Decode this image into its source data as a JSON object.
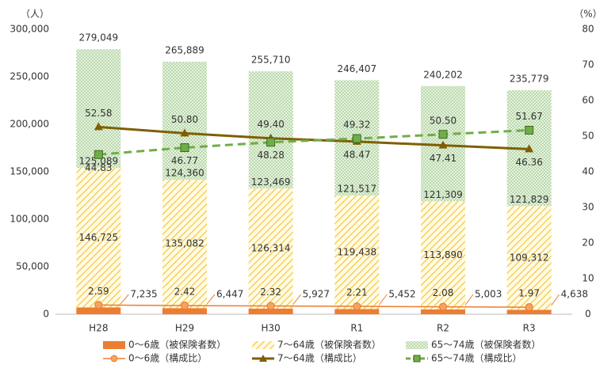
{
  "chart_data": {
    "type": "bar",
    "y_unit_label": "（人）",
    "y2_unit_label": "（%）",
    "categories": [
      "H28",
      "H29",
      "H30",
      "R1",
      "R2",
      "R3"
    ],
    "series": [
      {
        "name": "0～6歳（被保険者数）",
        "type": "bar",
        "color": "#ed7d31",
        "values": [
          7235,
          6447,
          5927,
          5452,
          5003,
          4638
        ],
        "value_labels": [
          "7,235",
          "6,447",
          "5,927",
          "5,452",
          "5,003",
          "4,638"
        ]
      },
      {
        "name": "7～64歳（被保険者数）",
        "type": "bar",
        "color": "#f5c842",
        "values": [
          146725,
          135082,
          126314,
          119438,
          113890,
          109312
        ],
        "value_labels": [
          "146,725",
          "135,082",
          "126,314",
          "119,438",
          "113,890",
          "109,312"
        ]
      },
      {
        "name": "65～74歳（被保険者数）",
        "type": "bar",
        "color": "#9dc88a",
        "values": [
          125089,
          124360,
          123469,
          121517,
          121309,
          121829
        ],
        "value_labels": [
          "125,089",
          "124,360",
          "123,469",
          "121,517",
          "121,309",
          "121,829"
        ]
      },
      {
        "name": "0～6歳（構成比）",
        "type": "line",
        "axis": "y2",
        "marker": "circle",
        "color": "#ed7d31",
        "values": [
          2.59,
          2.42,
          2.32,
          2.21,
          2.08,
          1.97
        ]
      },
      {
        "name": "7～64歳（構成比）",
        "type": "line",
        "axis": "y2",
        "marker": "triangle",
        "color": "#7f5f00",
        "values": [
          52.58,
          50.8,
          49.4,
          48.47,
          47.41,
          46.36
        ],
        "value_labels": [
          "52.58",
          "50.80",
          "49.40",
          "48.47",
          "47.41",
          "46.36"
        ]
      },
      {
        "name": "65～74歳（構成比）",
        "type": "line",
        "axis": "y2",
        "marker": "square",
        "dashed": true,
        "color": "#70ad47",
        "values": [
          44.83,
          46.77,
          48.28,
          49.32,
          50.5,
          51.67
        ],
        "value_labels": [
          "44.83",
          "46.77",
          "48.28",
          "49.32",
          "50.50",
          "51.67"
        ]
      }
    ],
    "totals": [
      279049,
      265889,
      255710,
      246407,
      240202,
      235779
    ],
    "total_labels": [
      "279,049",
      "265,889",
      "255,710",
      "246,407",
      "240,202",
      "235,779"
    ],
    "ylim": [
      0,
      300000
    ],
    "yticks": [
      0,
      {
        "value": 50000,
        "label": "50,000"
      },
      {
        "value": 100000,
        "label": "100,000"
      },
      {
        "value": 150000,
        "label": "150,000"
      },
      {
        "value": 200000,
        "label": "200,000"
      },
      {
        "value": 250000,
        "label": "250,000"
      },
      {
        "value": 300000,
        "label": "300,000"
      }
    ],
    "y2lim": [
      0,
      80
    ],
    "y2ticks": [
      0,
      10,
      20,
      30,
      40,
      50,
      60,
      70,
      80
    ],
    "grid": false
  }
}
